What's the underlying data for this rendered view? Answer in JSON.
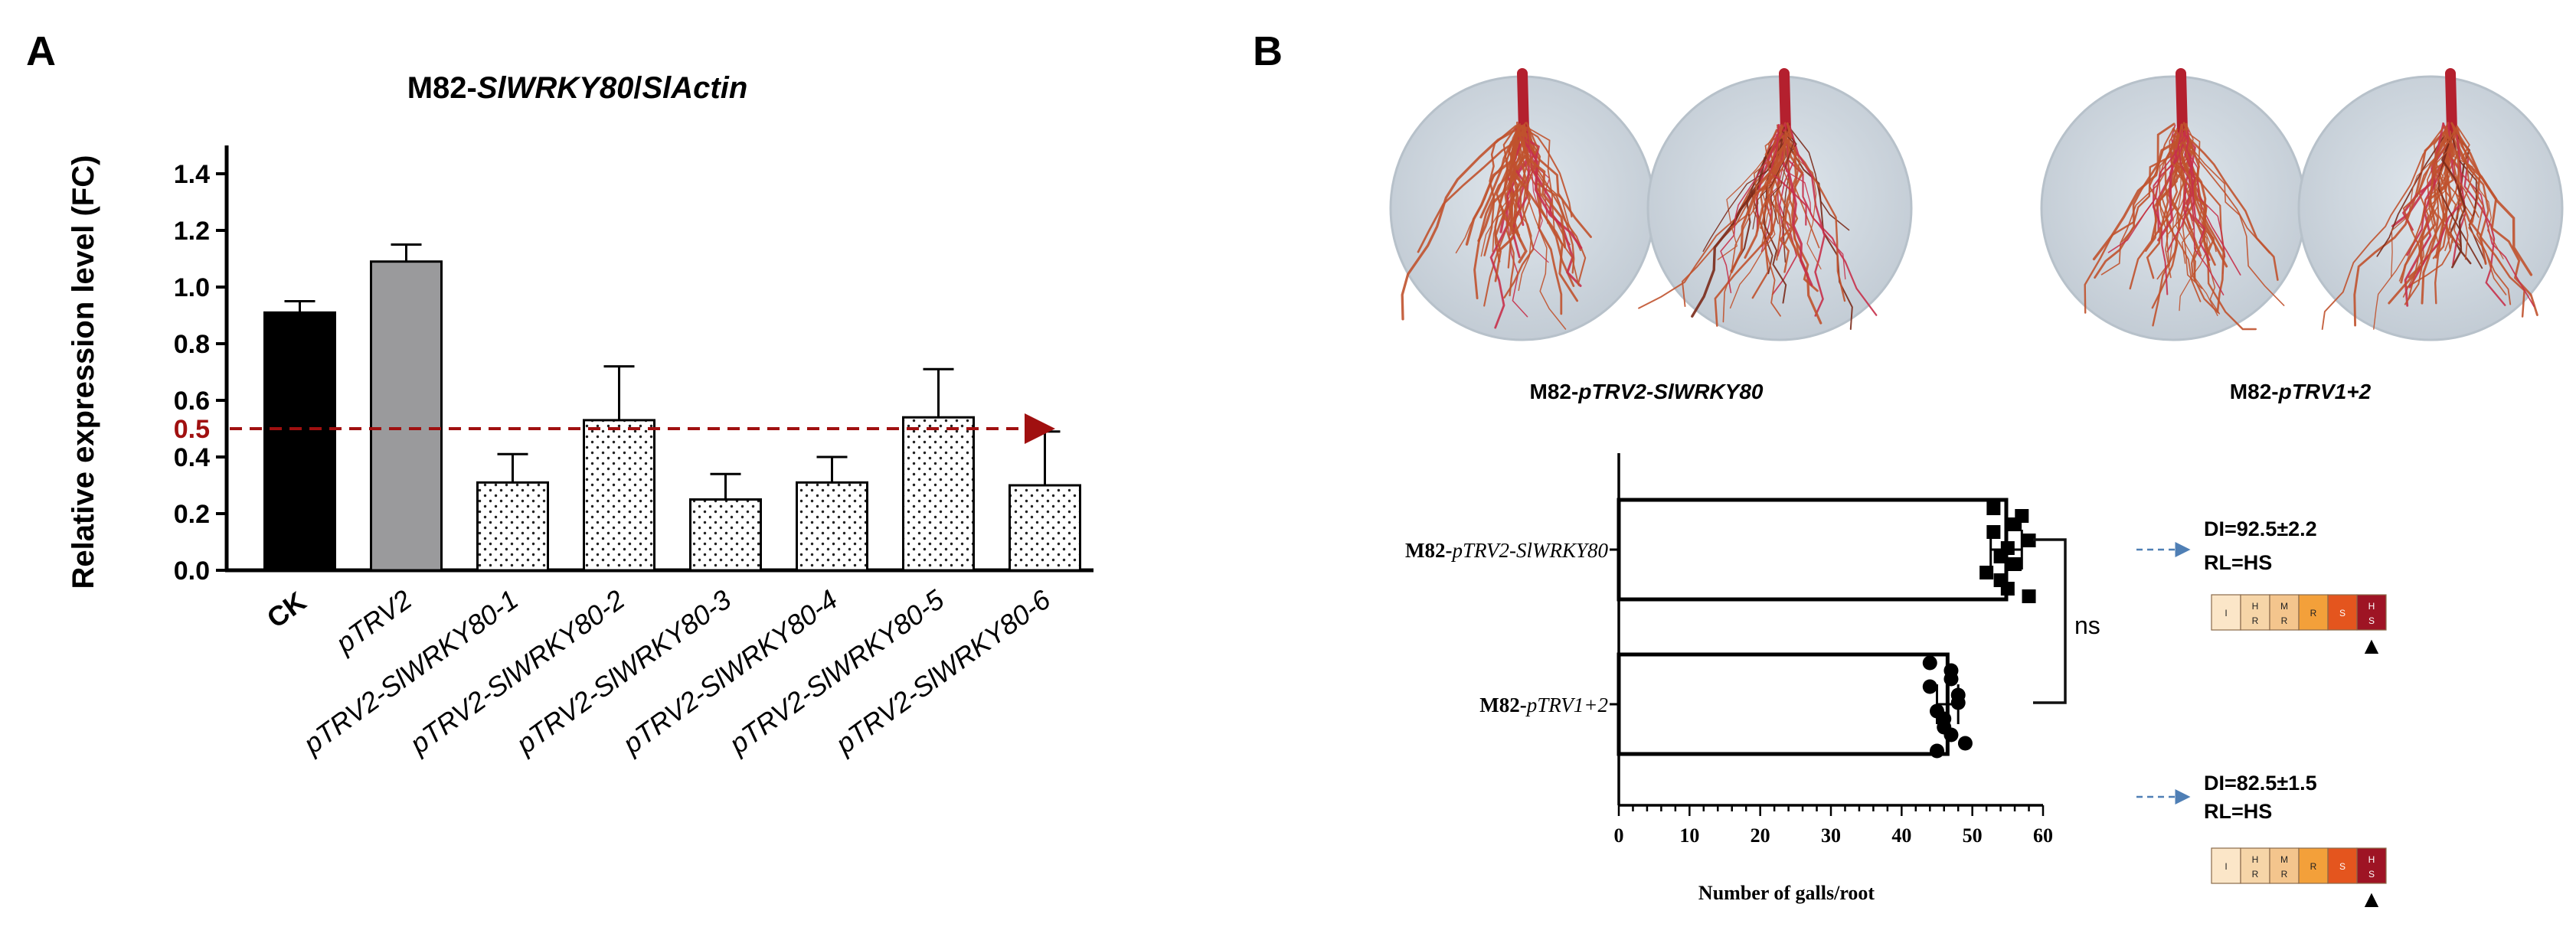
{
  "colors": {
    "black_bar": "#000000",
    "grey_bar": "#9a9a9c",
    "threshold": "#a01010",
    "dish": "#cdd5dc",
    "root": "#c0522e",
    "stem": "#b4202e",
    "arrow_blue": "#4f7fb5"
  },
  "panel_a": {
    "letter": "A",
    "title_prefix": "M82-",
    "title_gene": "SlWRKY80",
    "title_sep": "/",
    "title_ref": "SlActin"
  },
  "panel_b": {
    "letter": "B",
    "photo_captions": [
      {
        "prefix": "M82-",
        "name": "pTRV2-SlWRKY80"
      },
      {
        "prefix": "M82-",
        "name": "pTRV1+2"
      }
    ],
    "sig_label": "ns",
    "annotations": [
      {
        "di": "DI=92.5±2.2",
        "rl": "RL=HS"
      },
      {
        "di": "DI=82.5±1.5",
        "rl": "RL=HS"
      }
    ],
    "scale_labels": [
      {
        "top": "I",
        "bottom": ""
      },
      {
        "top": "H",
        "bottom": "R"
      },
      {
        "top": "M",
        "bottom": "R"
      },
      {
        "top": "R",
        "bottom": ""
      },
      {
        "top": "S",
        "bottom": ""
      },
      {
        "top": "H",
        "bottom": "S"
      }
    ],
    "scale_colors": [
      "#fbe6c8",
      "#f6d5a8",
      "#f4c58d",
      "#f3a03a",
      "#e4551e",
      "#9e1424"
    ],
    "scale_marker": "▲"
  },
  "chart_data": [
    {
      "type": "bar",
      "ylabel": "Relative expression level (FC)",
      "ylim": [
        0,
        1.5
      ],
      "yticks": [
        "0.0",
        "0.2",
        "0.4",
        "0.6",
        "0.8",
        "1.0",
        "1.2",
        "1.4"
      ],
      "threshold": {
        "value": 0.5,
        "label": "0.5"
      },
      "categories": [
        "CK",
        "pTRV2",
        "pTRV2-SlWRKY80-1",
        "pTRV2-SlWRKY80-2",
        "pTRV2-SlWRKY80-3",
        "pTRV2-SlWRKY80-4",
        "pTRV2-SlWRKY80-5",
        "pTRV2-SlWRKY80-6"
      ],
      "values": [
        0.91,
        1.09,
        0.31,
        0.53,
        0.25,
        0.31,
        0.54,
        0.3
      ],
      "errors": [
        0.04,
        0.06,
        0.1,
        0.19,
        0.09,
        0.09,
        0.17,
        0.19
      ],
      "fills": [
        "black",
        "grey",
        "dots",
        "dots",
        "dots",
        "dots",
        "dots",
        "dots"
      ],
      "grid": false
    },
    {
      "type": "bar",
      "orientation": "horizontal",
      "xlabel": "Number of galls/root",
      "xlim": [
        0,
        60
      ],
      "xticks": [
        "0",
        "10",
        "20",
        "30",
        "40",
        "50",
        "60"
      ],
      "categories": [
        "M82-pTRV2-SlWRKY80",
        "M82-pTRV1+2"
      ],
      "category_parts": [
        {
          "prefix": "M82-",
          "name": "pTRV2-SlWRKY80"
        },
        {
          "prefix": "M82-",
          "name": "pTRV1+2"
        }
      ],
      "values": [
        54.8,
        46.5
      ],
      "errors": [
        2.2,
        1.5
      ],
      "points": [
        [
          53,
          56,
          58,
          54,
          52,
          55,
          57,
          53,
          55,
          56,
          54,
          58
        ],
        [
          44,
          47,
          48,
          45,
          46,
          49,
          47,
          44,
          48,
          46,
          47,
          45
        ]
      ],
      "point_markers": [
        "square",
        "circle"
      ],
      "grid": false
    }
  ]
}
